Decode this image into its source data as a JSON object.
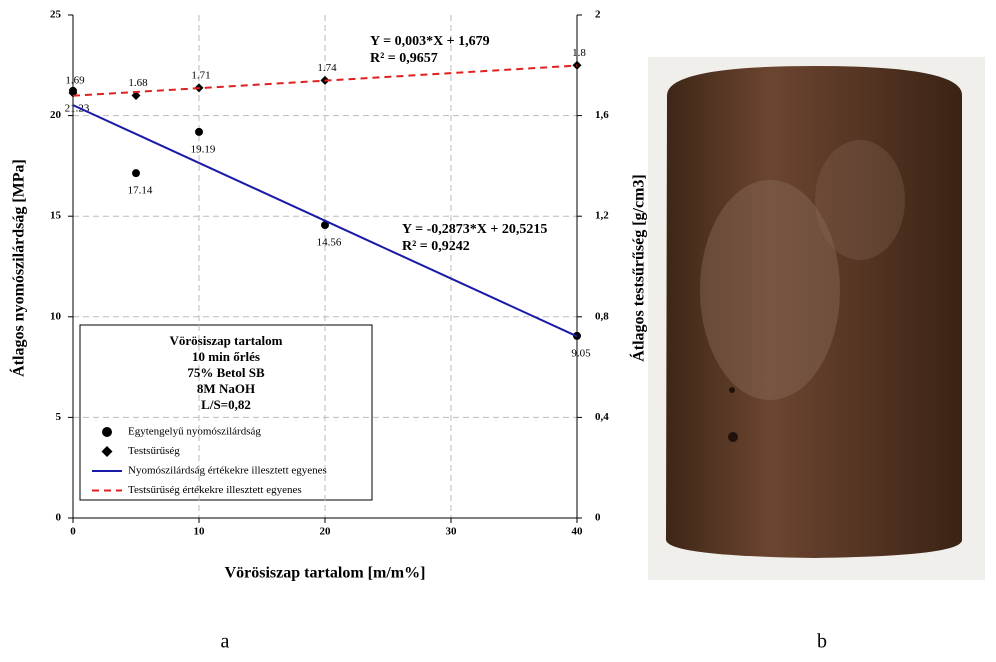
{
  "chart_data": {
    "type": "scatter",
    "xlabel": "Vörösiszap tartalom [m/m%]",
    "ylabel": "Átlagos nyomószilárdság [MPa]",
    "y2label": "Átlagos testsűrűség [g/cm3]",
    "xlim": [
      0,
      40
    ],
    "xticks": [
      0,
      10,
      20,
      30,
      40
    ],
    "ylim": [
      0,
      25
    ],
    "yticks": [
      0,
      5,
      10,
      15,
      20,
      25
    ],
    "y2lim": [
      0,
      2
    ],
    "y2ticks": [
      0,
      {
        "value": 0.4,
        "label": "0,4"
      },
      {
        "value": 0.8,
        "label": "0,8"
      },
      {
        "value": 1.2,
        "label": "1,2"
      },
      {
        "value": 1.6,
        "label": "1,6"
      },
      2
    ],
    "grid": true,
    "legend_title": [
      "Vörösiszap tartalom",
      "10 min őrlés",
      "75% Betol SB",
      "8M NaOH",
      "L/S=0,82"
    ],
    "series": [
      {
        "name": "Egytengelyű nyomószilárdság",
        "color": "#000000",
        "marker": "circle",
        "x": [
          0,
          5,
          10,
          20,
          40
        ],
        "values": [
          21.23,
          17.14,
          19.19,
          14.56,
          9.05
        ]
      },
      {
        "name": "Testsűrűség",
        "color": "#000000",
        "marker": "diamond",
        "axis": "y2",
        "x": [
          0,
          5,
          10,
          20,
          40
        ],
        "values": [
          1.69,
          1.68,
          1.71,
          1.74,
          1.8
        ]
      },
      {
        "name": "Nyomószilárdság értékekre illesztett egyenes",
        "color": "#1a1aa8",
        "style": "solid",
        "x": [
          0,
          40
        ],
        "values": [
          20.52,
          9.03
        ]
      },
      {
        "name": "Testsűrűség értékekre illesztett egyenes",
        "color": "#e02020",
        "style": "dashed",
        "axis": "y2",
        "x": [
          0,
          40
        ],
        "values": [
          1.679,
          1.799
        ]
      }
    ],
    "annotations": [
      "Y = 0,003*X + 1,679",
      "R² = 0,9657",
      "Y = -0,2873*X + 20,5215",
      "R² = 0,9242"
    ]
  },
  "panels": [
    "a",
    "b"
  ]
}
